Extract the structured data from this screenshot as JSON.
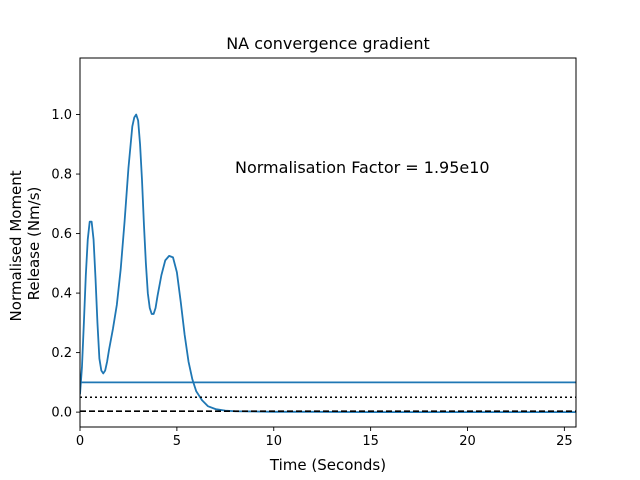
{
  "chart_data": {
    "type": "line",
    "title": "NA convergence gradient",
    "xlabel": "Time (Seconds)",
    "ylabel_lines": [
      "Normalised Moment",
      "Release (Nm/s)"
    ],
    "annotation": "Normalisation Factor = 1.95e10",
    "xlim": [
      0,
      25.6
    ],
    "ylim": [
      -0.05,
      1.19
    ],
    "x_ticks": [
      0,
      5,
      10,
      15,
      20,
      25
    ],
    "x_tick_labels": [
      "0",
      "5",
      "10",
      "15",
      "20",
      "25"
    ],
    "y_ticks": [
      0.0,
      0.2,
      0.4,
      0.6,
      0.8,
      1.0
    ],
    "y_tick_labels": [
      "0.0",
      "0.2",
      "0.4",
      "0.6",
      "0.8",
      "1.0"
    ],
    "grid": false,
    "series": [
      {
        "color": "#1f77b4",
        "style": "solid",
        "x": [
          0,
          0.1,
          0.2,
          0.3,
          0.4,
          0.5,
          0.6,
          0.7,
          0.8,
          0.9,
          1.0,
          1.1,
          1.2,
          1.3,
          1.4,
          1.5,
          1.7,
          1.9,
          2.1,
          2.3,
          2.5,
          2.7,
          2.8,
          2.9,
          3.0,
          3.1,
          3.2,
          3.3,
          3.4,
          3.5,
          3.6,
          3.7,
          3.8,
          3.9,
          4.0,
          4.2,
          4.4,
          4.6,
          4.8,
          5.0,
          5.2,
          5.4,
          5.6,
          5.8,
          6.0,
          6.3,
          6.6,
          7.0,
          7.5,
          8.0,
          9.0,
          10.0,
          12.0,
          15.0,
          20.0,
          25.6
        ],
        "y": [
          0.06,
          0.15,
          0.3,
          0.46,
          0.58,
          0.64,
          0.64,
          0.58,
          0.45,
          0.3,
          0.18,
          0.14,
          0.13,
          0.14,
          0.17,
          0.21,
          0.28,
          0.36,
          0.48,
          0.64,
          0.82,
          0.96,
          0.99,
          1.0,
          0.98,
          0.9,
          0.78,
          0.63,
          0.5,
          0.4,
          0.35,
          0.33,
          0.33,
          0.35,
          0.39,
          0.46,
          0.51,
          0.525,
          0.52,
          0.47,
          0.37,
          0.26,
          0.17,
          0.11,
          0.07,
          0.04,
          0.02,
          0.01,
          0.005,
          0.003,
          0.002,
          0.001,
          0.001,
          0.0,
          0.0,
          0.0
        ]
      },
      {
        "color": "#1f77b4",
        "style": "solid",
        "x": [
          0,
          25.6
        ],
        "y": [
          0.1,
          0.1
        ]
      },
      {
        "color": "#000000",
        "style": "dotted",
        "x": [
          0,
          25.6
        ],
        "y": [
          0.05,
          0.05
        ]
      },
      {
        "color": "#000000",
        "style": "dashed",
        "x": [
          0,
          25.6
        ],
        "y": [
          0.003,
          0.003
        ]
      }
    ]
  }
}
